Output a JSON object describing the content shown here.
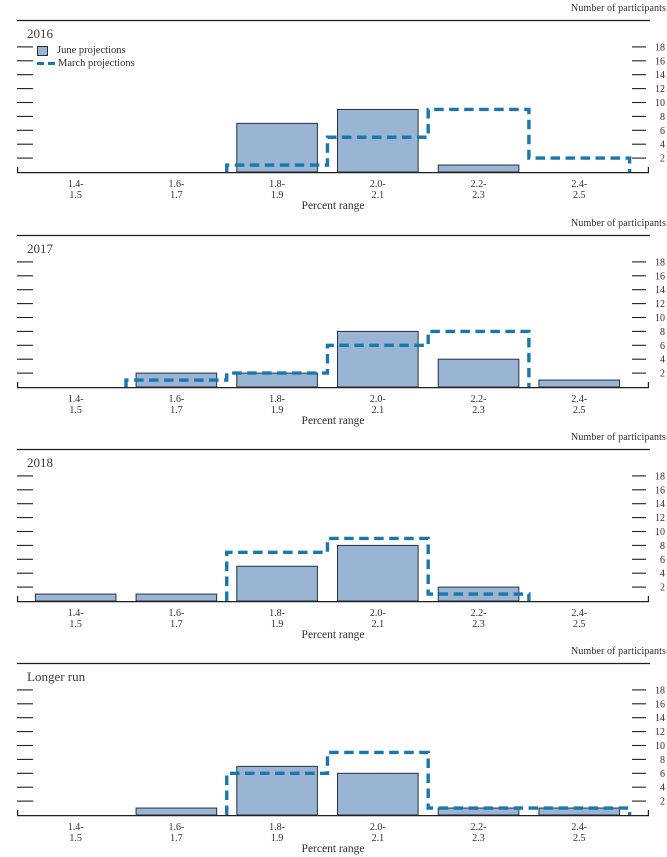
{
  "figure": {
    "y_axis_title": "Number of participants",
    "x_axis_title": "Percent range",
    "y_ticks": [
      2,
      4,
      6,
      8,
      10,
      12,
      14,
      16,
      18
    ],
    "categories_line1": [
      "1.4-",
      "1.6-",
      "1.8-",
      "2.0-",
      "2.2-",
      "2.4-"
    ],
    "categories_line2": [
      "1.5",
      "1.7",
      "1.9",
      "2.1",
      "2.3",
      "2.5"
    ],
    "legend": [
      {
        "label": "June projections",
        "swatch": "filled-bar"
      },
      {
        "label": "March projections",
        "swatch": "dashed-line"
      }
    ]
  },
  "colors": {
    "bar_fill": "#9ab5d3",
    "bar_border": "#24313c",
    "dash_line": "#1a76ad",
    "axis": "#1f1f1f",
    "text": "#2e2e2e"
  },
  "chart_data": [
    {
      "type": "bar",
      "title": "2016",
      "categories": [
        "1.4-1.5",
        "1.6-1.7",
        "1.8-1.9",
        "2.0-2.1",
        "2.2-2.3",
        "2.4-2.5"
      ],
      "series": [
        {
          "name": "June projections",
          "style": "bar",
          "values": [
            0,
            0,
            7,
            9,
            1,
            0
          ]
        },
        {
          "name": "March projections",
          "style": "dashed-step",
          "values": [
            0,
            0,
            1,
            5,
            9,
            2
          ]
        }
      ],
      "xlabel": "Percent range",
      "ylabel": "Number of participants",
      "ylim": [
        0,
        22
      ],
      "yticks": [
        2,
        4,
        6,
        8,
        10,
        12,
        14,
        16,
        18
      ],
      "grid": false,
      "legend_position": "top-left"
    },
    {
      "type": "bar",
      "title": "2017",
      "categories": [
        "1.4-1.5",
        "1.6-1.7",
        "1.8-1.9",
        "2.0-2.1",
        "2.2-2.3",
        "2.4-2.5"
      ],
      "series": [
        {
          "name": "June projections",
          "style": "bar",
          "values": [
            0,
            2,
            2,
            8,
            4,
            1
          ]
        },
        {
          "name": "March projections",
          "style": "dashed-step",
          "values": [
            0,
            1,
            2,
            6,
            8,
            0
          ]
        }
      ],
      "xlabel": "Percent range",
      "ylabel": "Number of participants",
      "ylim": [
        0,
        22
      ],
      "yticks": [
        2,
        4,
        6,
        8,
        10,
        12,
        14,
        16,
        18
      ],
      "grid": false,
      "legend_position": "none"
    },
    {
      "type": "bar",
      "title": "2018",
      "categories": [
        "1.4-1.5",
        "1.6-1.7",
        "1.8-1.9",
        "2.0-2.1",
        "2.2-2.3",
        "2.4-2.5"
      ],
      "series": [
        {
          "name": "June projections",
          "style": "bar",
          "values": [
            1,
            1,
            5,
            8,
            2,
            0
          ]
        },
        {
          "name": "March projections",
          "style": "dashed-step",
          "values": [
            0,
            0,
            7,
            9,
            1,
            0
          ]
        }
      ],
      "xlabel": "Percent range",
      "ylabel": "Number of participants",
      "ylim": [
        0,
        22
      ],
      "yticks": [
        2,
        4,
        6,
        8,
        10,
        12,
        14,
        16,
        18
      ],
      "grid": false,
      "legend_position": "none"
    },
    {
      "type": "bar",
      "title": "Longer run",
      "categories": [
        "1.4-1.5",
        "1.6-1.7",
        "1.8-1.9",
        "2.0-2.1",
        "2.2-2.3",
        "2.4-2.5"
      ],
      "series": [
        {
          "name": "June projections",
          "style": "bar",
          "values": [
            0,
            1,
            7,
            6,
            1,
            1
          ]
        },
        {
          "name": "March projections",
          "style": "dashed-step",
          "values": [
            0,
            0,
            6,
            9,
            1,
            1
          ]
        }
      ],
      "xlabel": "Percent range",
      "ylabel": "Number of participants",
      "ylim": [
        0,
        22
      ],
      "yticks": [
        2,
        4,
        6,
        8,
        10,
        12,
        14,
        16,
        18
      ],
      "grid": false,
      "legend_position": "none"
    }
  ]
}
